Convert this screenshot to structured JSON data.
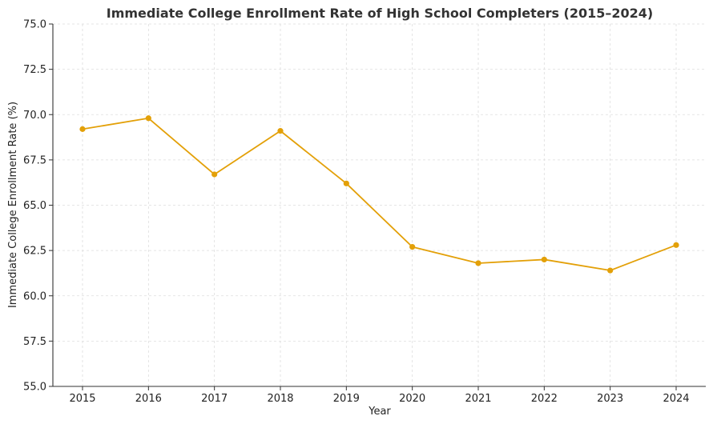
{
  "chart_data": {
    "type": "line",
    "title": "Immediate College Enrollment Rate of High School Completers (2015–2024)",
    "xlabel": "Year",
    "ylabel": "Immediate College Enrollment Rate (%)",
    "x": [
      "2015",
      "2016",
      "2017",
      "2018",
      "2019",
      "2020",
      "2021",
      "2022",
      "2023",
      "2024"
    ],
    "series": [
      {
        "values": [
          69.2,
          69.8,
          66.7,
          69.1,
          66.2,
          62.7,
          61.8,
          62.0,
          61.4,
          62.8
        ]
      }
    ],
    "ylim": [
      55.0,
      75.0
    ],
    "yticks": [
      "55.0",
      "57.5",
      "60.0",
      "62.5",
      "65.0",
      "67.5",
      "70.0",
      "72.5",
      "75.0"
    ],
    "grid": true,
    "line_color": "#E3A008",
    "marker": "circle"
  }
}
